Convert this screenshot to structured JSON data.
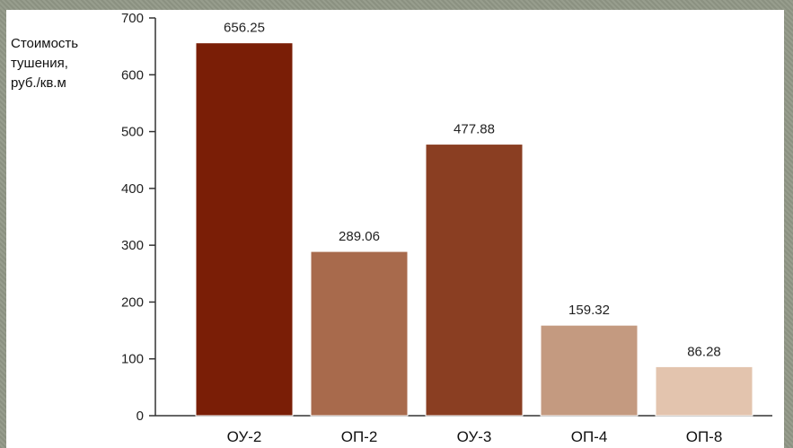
{
  "chart_data": {
    "type": "bar",
    "title": "",
    "ylabel": "Стоимость\nтушения,\nруб./кв.м",
    "xlabel": "",
    "categories": [
      "ОУ-2",
      "ОП-2",
      "ОУ-3",
      "ОП-4",
      "ОП-8"
    ],
    "values": [
      656.25,
      289.06,
      477.88,
      159.32,
      86.28
    ],
    "value_labels": [
      "656.25",
      "289.06",
      "477.88",
      "159.32",
      "86.28"
    ],
    "ylim": [
      0,
      700
    ],
    "yticks": [
      0,
      100,
      200,
      300,
      400,
      500,
      600,
      700
    ],
    "grid": false,
    "colors": [
      "#7a1e06",
      "#a86a4c",
      "#8a3e22",
      "#c49a80",
      "#e3c4ae"
    ]
  }
}
